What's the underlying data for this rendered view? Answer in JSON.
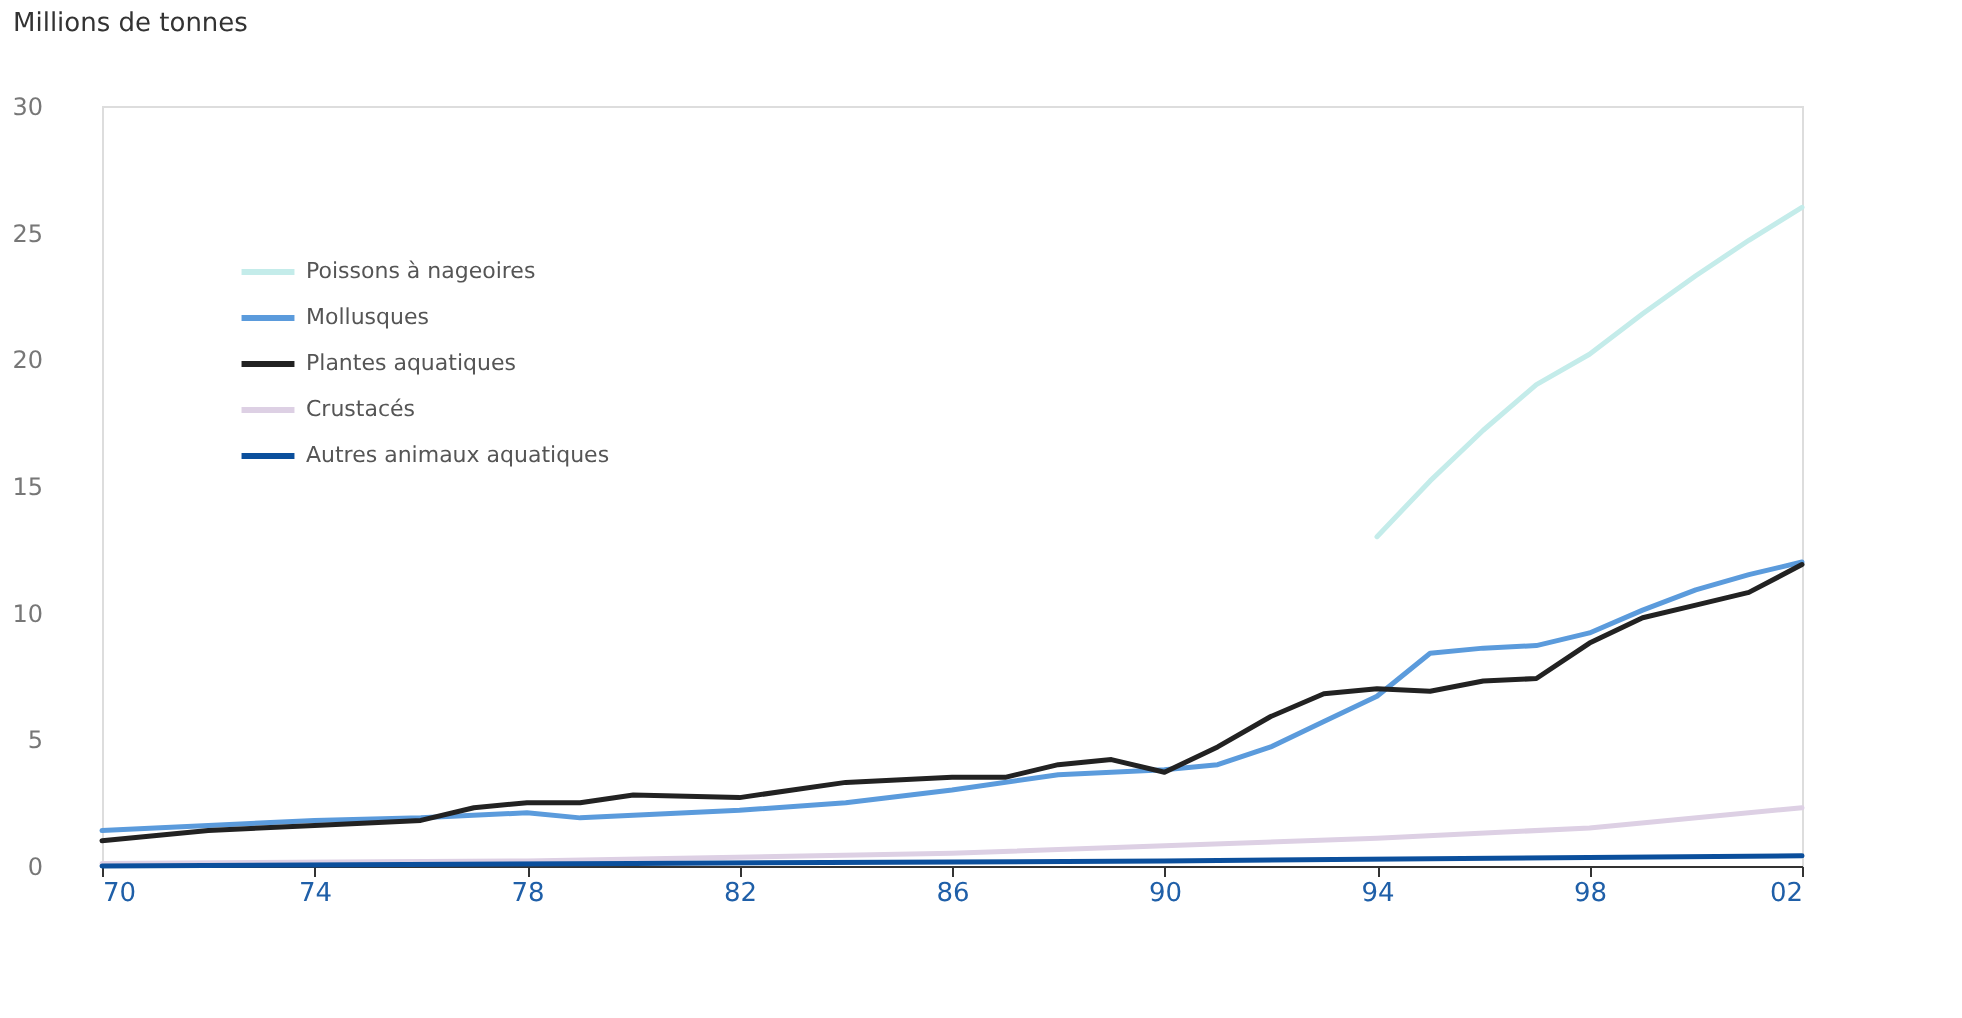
{
  "chart_data": {
    "type": "line",
    "ylabel": "Millions de tonnes",
    "xlim": [
      1970,
      2002
    ],
    "xticks": [
      {
        "value": 1970,
        "label": "70"
      },
      {
        "value": 1974,
        "label": "74"
      },
      {
        "value": 1978,
        "label": "78"
      },
      {
        "value": 1982,
        "label": "82"
      },
      {
        "value": 1986,
        "label": "86"
      },
      {
        "value": 1990,
        "label": "90"
      },
      {
        "value": 1994,
        "label": "94"
      },
      {
        "value": 1998,
        "label": "98"
      },
      {
        "value": 2002,
        "label": "02"
      }
    ],
    "ylim": [
      0,
      30
    ],
    "yticks": [
      0,
      5,
      10,
      15,
      20,
      25,
      30
    ],
    "grid": false,
    "legend": "top left",
    "series": [
      {
        "name": "Poissons à nageoires",
        "color": "#c4ecea",
        "x": [
          1994,
          1995,
          1996,
          1997,
          1998,
          1999,
          2000,
          2001,
          2002
        ],
        "values": [
          13.0,
          15.2,
          17.2,
          19.0,
          20.2,
          21.8,
          23.3,
          24.7,
          26.0
        ]
      },
      {
        "name": "Mollusques",
        "color": "#5b9bdc",
        "x": [
          1970,
          1972,
          1974,
          1976,
          1978,
          1979,
          1980,
          1982,
          1984,
          1986,
          1988,
          1990,
          1991,
          1992,
          1993,
          1994,
          1995,
          1996,
          1997,
          1998,
          1999,
          2000,
          2001,
          2002
        ],
        "values": [
          1.4,
          1.6,
          1.8,
          1.9,
          2.1,
          1.9,
          2.0,
          2.2,
          2.5,
          3.0,
          3.6,
          3.8,
          4.0,
          4.7,
          5.7,
          6.7,
          8.4,
          8.6,
          8.7,
          9.2,
          10.1,
          10.9,
          11.5,
          12.0
        ]
      },
      {
        "name": "Plantes aquatiques",
        "color": "#222222",
        "x": [
          1970,
          1972,
          1974,
          1976,
          1977,
          1978,
          1979,
          1980,
          1982,
          1984,
          1986,
          1987,
          1988,
          1989,
          1990,
          1991,
          1992,
          1993,
          1994,
          1995,
          1996,
          1997,
          1998,
          1999,
          2000,
          2001,
          2002
        ],
        "values": [
          1.0,
          1.4,
          1.6,
          1.8,
          2.3,
          2.5,
          2.5,
          2.8,
          2.7,
          3.3,
          3.5,
          3.5,
          4.0,
          4.2,
          3.7,
          4.7,
          5.9,
          6.8,
          7.0,
          6.9,
          7.3,
          7.4,
          8.8,
          9.8,
          10.3,
          10.8,
          11.9
        ]
      },
      {
        "name": "Crustacés",
        "color": "#ddd0e4",
        "x": [
          1970,
          1978,
          1986,
          1990,
          1994,
          1998,
          2002
        ],
        "values": [
          0.1,
          0.2,
          0.5,
          0.8,
          1.1,
          1.5,
          2.3
        ]
      },
      {
        "name": "Autres animaux aquatiques",
        "color": "#0b4f9c",
        "x": [
          1970,
          1980,
          1990,
          2002
        ],
        "values": [
          0.0,
          0.1,
          0.2,
          0.4
        ]
      }
    ]
  }
}
